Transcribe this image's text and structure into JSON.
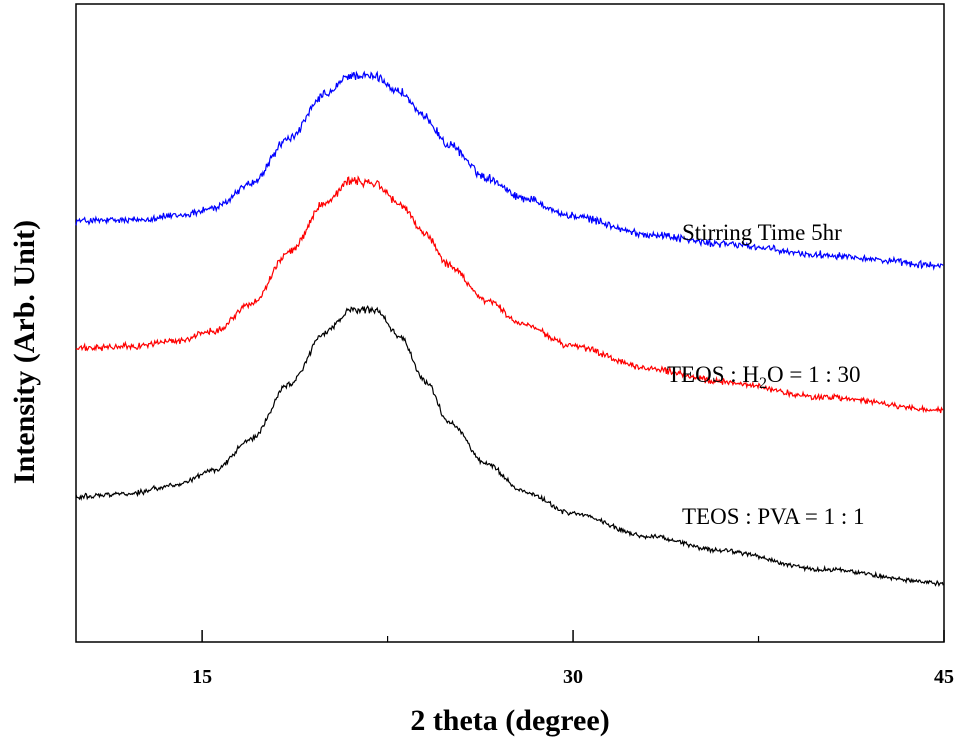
{
  "chart_data": {
    "type": "line",
    "title": "",
    "xlabel": "2 theta (degree)",
    "ylabel": "Intensity (Arb. Unit)",
    "xlim": [
      9.9,
      45
    ],
    "ylim": [
      0,
      1
    ],
    "x_ticks": [
      15,
      30,
      45
    ],
    "minor_ticks": [
      22.5,
      37.5
    ],
    "y_ticks": "none",
    "grid": false,
    "legend": "none",
    "series": [
      {
        "name": "Stirring Time 5hr",
        "color": "#0000ff",
        "label": "Stirring Time 5hr",
        "x": [
          9.9,
          12,
          14,
          15.5,
          17,
          18.5,
          20,
          21,
          22,
          23,
          24,
          25,
          26.5,
          28,
          30,
          33,
          36,
          40,
          45
        ],
        "y": [
          0.66,
          0.661,
          0.668,
          0.68,
          0.719,
          0.789,
          0.858,
          0.888,
          0.886,
          0.862,
          0.822,
          0.778,
          0.728,
          0.696,
          0.667,
          0.639,
          0.624,
          0.607,
          0.59
        ]
      },
      {
        "name": "TEOS : H2O = 1 : 30",
        "color": "#ff0000",
        "label_parts": [
          "TEOS : H",
          "2",
          "O = 1 : 30"
        ],
        "x": [
          9.9,
          12,
          14,
          15.5,
          17,
          18.5,
          20,
          21,
          22,
          23,
          24,
          25,
          26.5,
          28,
          30,
          33,
          36,
          40,
          45
        ],
        "y": [
          0.46,
          0.463,
          0.472,
          0.488,
          0.53,
          0.61,
          0.69,
          0.723,
          0.718,
          0.686,
          0.64,
          0.59,
          0.535,
          0.497,
          0.463,
          0.429,
          0.408,
          0.384,
          0.363
        ]
      },
      {
        "name": "TEOS : PVA = 1 : 1",
        "color": "#000000",
        "label": "TEOS : PVA = 1 : 1",
        "x": [
          9.9,
          12,
          14,
          15.5,
          17,
          18.5,
          20,
          21,
          22,
          23,
          24,
          25,
          26.5,
          28,
          30,
          33,
          36,
          40,
          45
        ],
        "y": [
          0.228,
          0.233,
          0.246,
          0.27,
          0.318,
          0.404,
          0.485,
          0.52,
          0.52,
          0.478,
          0.41,
          0.344,
          0.279,
          0.236,
          0.201,
          0.166,
          0.143,
          0.114,
          0.092
        ]
      }
    ]
  }
}
